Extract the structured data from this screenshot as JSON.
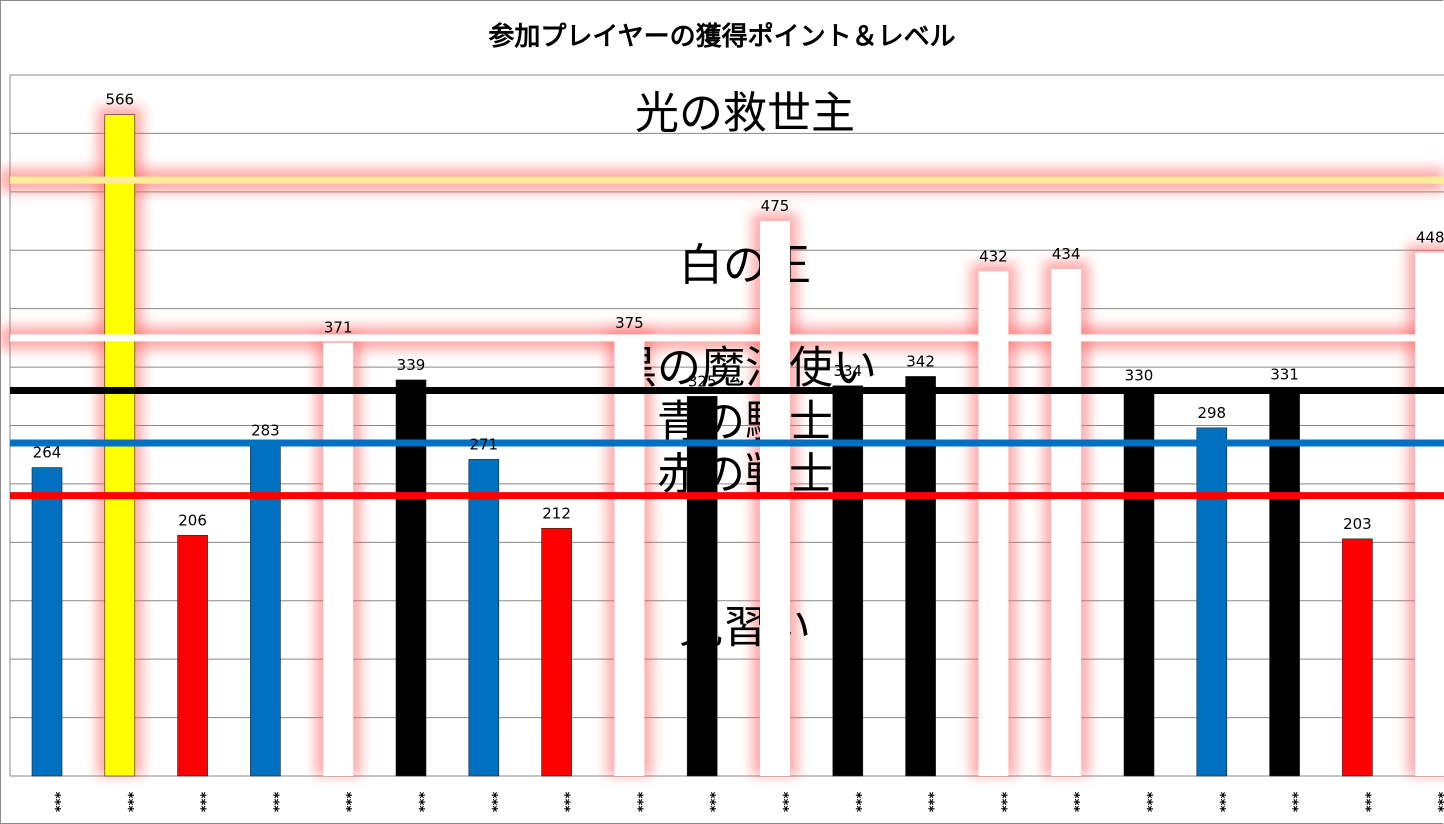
{
  "chart_data": {
    "type": "bar",
    "title": "参加プレイヤーの獲得ポイント＆レベル",
    "ylim": [
      0,
      600
    ],
    "grid": true,
    "xlabel": "",
    "ylabel": "",
    "categories": [
      "***",
      "***",
      "***",
      "***",
      "***",
      "***",
      "***",
      "***",
      "***",
      "***",
      "***",
      "***",
      "***",
      "***",
      "***",
      "***",
      "***",
      "***",
      "***",
      "***"
    ],
    "values": [
      264,
      566,
      206,
      283,
      371,
      339,
      271,
      212,
      375,
      325,
      475,
      334,
      342,
      432,
      434,
      330,
      298,
      331,
      203,
      448
    ],
    "value_labels": [
      "264",
      "566",
      "206",
      "283",
      "371",
      "339",
      "271",
      "212",
      "375",
      "325",
      "475",
      "334",
      "342",
      "432",
      "434",
      "330",
      "298",
      "331",
      "203",
      "448"
    ],
    "bar_colors": [
      "#0070c0",
      "#ffff00",
      "#ff0000",
      "#0070c0",
      "#ffffff",
      "#000000",
      "#0070c0",
      "#ff0000",
      "#ffffff",
      "#000000",
      "#ffffff",
      "#000000",
      "#000000",
      "#ffffff",
      "#ffffff",
      "#000000",
      "#0070c0",
      "#000000",
      "#ff0000",
      "#ffffff"
    ],
    "glow_bars": [
      false,
      true,
      false,
      false,
      true,
      false,
      false,
      false,
      true,
      false,
      true,
      false,
      false,
      true,
      true,
      false,
      false,
      false,
      false,
      true
    ],
    "level_lines": [
      {
        "value": 510,
        "color": "#ffee99",
        "glow": true
      },
      {
        "value": 375,
        "color": "#ffffff",
        "glow": true
      },
      {
        "value": 330,
        "color": "#000000",
        "glow": false
      },
      {
        "value": 285,
        "color": "#0070c0",
        "glow": false
      },
      {
        "value": 240,
        "color": "#ff0000",
        "glow": false
      }
    ],
    "level_names": [
      {
        "text": "光の救世主",
        "value": 565
      },
      {
        "text": "白の王",
        "value": 435
      },
      {
        "text": "黒の魔法使い",
        "value": 347
      },
      {
        "text": "青の騎士",
        "value": 301
      },
      {
        "text": "赤の戦士",
        "value": 256
      },
      {
        "text": "見習い",
        "value": 125
      }
    ]
  }
}
